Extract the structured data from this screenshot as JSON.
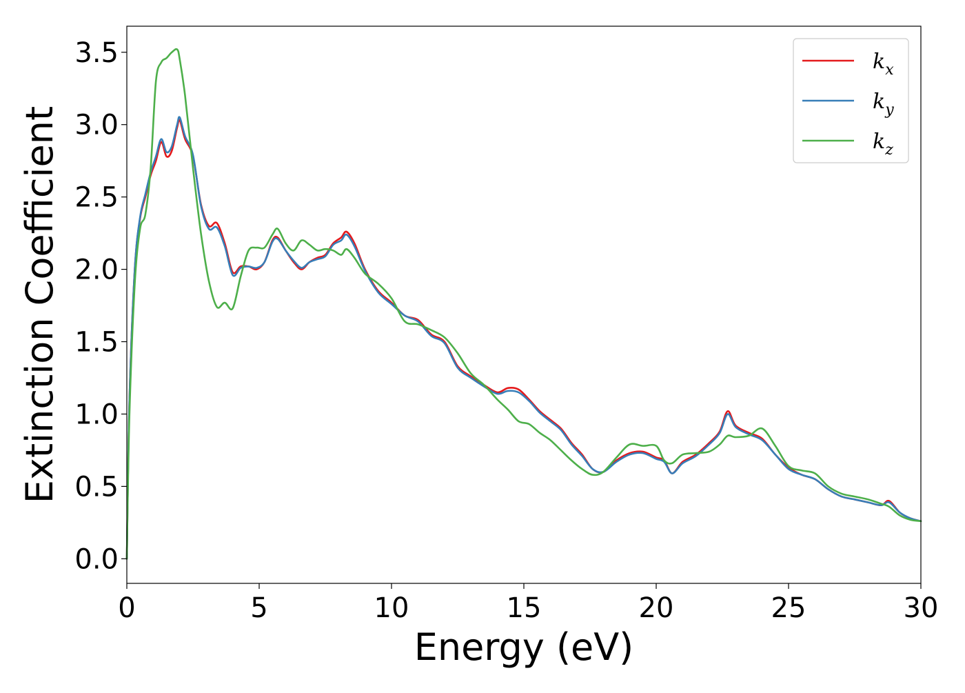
{
  "chart_data": {
    "type": "line",
    "title": "",
    "xlabel": "Energy (eV)",
    "ylabel": "Extinction Coefficient",
    "xlim": [
      0,
      30
    ],
    "ylim": [
      -0.17,
      3.68
    ],
    "xticks": [
      0,
      5,
      10,
      15,
      20,
      25,
      30
    ],
    "xtick_labels": [
      "0",
      "5",
      "10",
      "15",
      "20",
      "25",
      "30"
    ],
    "yticks": [
      0.0,
      0.5,
      1.0,
      1.5,
      2.0,
      2.5,
      3.0,
      3.5
    ],
    "ytick_labels": [
      "0.0",
      "0.5",
      "1.0",
      "1.5",
      "2.0",
      "2.5",
      "3.0",
      "3.5"
    ],
    "grid": false,
    "legend_position": "top-right",
    "series": [
      {
        "name": "k",
        "subscript": "x",
        "color": "#e41a1c",
        "x": [
          0,
          0.1,
          0.3,
          0.5,
          0.7,
          0.9,
          1.1,
          1.3,
          1.5,
          1.7,
          1.9,
          2.0,
          2.2,
          2.5,
          2.8,
          3.1,
          3.4,
          3.7,
          4.0,
          4.3,
          4.6,
          4.9,
          5.2,
          5.5,
          5.7,
          6.0,
          6.3,
          6.6,
          6.9,
          7.2,
          7.5,
          7.8,
          8.1,
          8.3,
          8.6,
          9.0,
          9.5,
          10.0,
          10.5,
          11.0,
          11.5,
          12.0,
          12.5,
          13.0,
          13.5,
          14.0,
          14.4,
          14.8,
          15.2,
          15.6,
          16.0,
          16.4,
          16.8,
          17.2,
          17.6,
          18.0,
          18.5,
          19.0,
          19.5,
          20.0,
          20.3,
          20.6,
          21.0,
          21.5,
          22.0,
          22.4,
          22.7,
          23.0,
          23.5,
          24.0,
          24.5,
          25.0,
          25.5,
          26.0,
          26.5,
          27.0,
          27.5,
          28.0,
          28.5,
          28.8,
          29.2,
          29.6,
          30.0
        ],
        "y": [
          0.0,
          1.1,
          2.0,
          2.35,
          2.5,
          2.65,
          2.75,
          2.88,
          2.78,
          2.82,
          2.98,
          3.03,
          2.9,
          2.78,
          2.45,
          2.3,
          2.32,
          2.18,
          1.98,
          2.02,
          2.02,
          2.0,
          2.05,
          2.2,
          2.22,
          2.13,
          2.05,
          2.0,
          2.05,
          2.08,
          2.1,
          2.18,
          2.22,
          2.26,
          2.18,
          2.0,
          1.85,
          1.77,
          1.68,
          1.65,
          1.55,
          1.5,
          1.33,
          1.26,
          1.2,
          1.15,
          1.18,
          1.17,
          1.1,
          1.02,
          0.96,
          0.9,
          0.8,
          0.72,
          0.62,
          0.6,
          0.68,
          0.73,
          0.74,
          0.7,
          0.68,
          0.59,
          0.67,
          0.72,
          0.8,
          0.88,
          1.02,
          0.92,
          0.87,
          0.83,
          0.72,
          0.63,
          0.58,
          0.55,
          0.48,
          0.43,
          0.41,
          0.39,
          0.37,
          0.4,
          0.32,
          0.28,
          0.26
        ]
      },
      {
        "name": "k",
        "subscript": "y",
        "color": "#377eb8",
        "x": [
          0,
          0.1,
          0.3,
          0.5,
          0.7,
          0.9,
          1.1,
          1.3,
          1.5,
          1.7,
          1.9,
          2.0,
          2.2,
          2.5,
          2.8,
          3.1,
          3.4,
          3.7,
          4.0,
          4.3,
          4.6,
          4.9,
          5.2,
          5.5,
          5.7,
          6.0,
          6.3,
          6.6,
          6.9,
          7.2,
          7.5,
          7.8,
          8.1,
          8.3,
          8.6,
          9.0,
          9.5,
          10.0,
          10.5,
          11.0,
          11.5,
          12.0,
          12.5,
          13.0,
          13.5,
          14.0,
          14.4,
          14.8,
          15.2,
          15.6,
          16.0,
          16.4,
          16.8,
          17.2,
          17.6,
          18.0,
          18.5,
          19.0,
          19.5,
          20.0,
          20.3,
          20.6,
          21.0,
          21.5,
          22.0,
          22.4,
          22.7,
          23.0,
          23.5,
          24.0,
          24.5,
          25.0,
          25.5,
          26.0,
          26.5,
          27.0,
          27.5,
          28.0,
          28.5,
          28.8,
          29.2,
          29.6,
          30.0
        ],
        "y": [
          0.0,
          1.1,
          2.0,
          2.36,
          2.52,
          2.67,
          2.78,
          2.9,
          2.81,
          2.85,
          3.0,
          3.05,
          2.92,
          2.79,
          2.44,
          2.28,
          2.29,
          2.16,
          1.96,
          2.01,
          2.02,
          2.01,
          2.05,
          2.19,
          2.21,
          2.13,
          2.06,
          2.01,
          2.05,
          2.07,
          2.09,
          2.17,
          2.2,
          2.24,
          2.16,
          1.99,
          1.84,
          1.76,
          1.68,
          1.64,
          1.54,
          1.49,
          1.32,
          1.25,
          1.19,
          1.14,
          1.16,
          1.15,
          1.09,
          1.01,
          0.95,
          0.89,
          0.79,
          0.71,
          0.62,
          0.6,
          0.67,
          0.72,
          0.73,
          0.69,
          0.67,
          0.59,
          0.66,
          0.71,
          0.79,
          0.87,
          1.0,
          0.91,
          0.86,
          0.82,
          0.72,
          0.62,
          0.58,
          0.55,
          0.48,
          0.43,
          0.41,
          0.39,
          0.37,
          0.39,
          0.32,
          0.28,
          0.26
        ]
      },
      {
        "name": "k",
        "subscript": "z",
        "color": "#4daf4a",
        "x": [
          0,
          0.1,
          0.3,
          0.5,
          0.7,
          0.9,
          1.1,
          1.3,
          1.5,
          1.7,
          1.9,
          2.0,
          2.2,
          2.5,
          2.8,
          3.1,
          3.4,
          3.7,
          4.0,
          4.3,
          4.6,
          4.9,
          5.2,
          5.5,
          5.7,
          6.0,
          6.3,
          6.6,
          6.9,
          7.2,
          7.5,
          7.8,
          8.1,
          8.3,
          8.6,
          9.0,
          9.5,
          10.0,
          10.5,
          11.0,
          11.5,
          12.0,
          12.5,
          13.0,
          13.5,
          14.0,
          14.4,
          14.8,
          15.2,
          15.6,
          16.0,
          16.4,
          16.8,
          17.2,
          17.6,
          18.0,
          18.5,
          19.0,
          19.5,
          20.0,
          20.3,
          20.6,
          21.0,
          21.5,
          22.0,
          22.4,
          22.7,
          23.0,
          23.5,
          24.0,
          24.5,
          25.0,
          25.5,
          26.0,
          26.5,
          27.0,
          27.5,
          28.0,
          28.5,
          28.8,
          29.2,
          29.6,
          30.0
        ],
        "y": [
          0.0,
          1.0,
          1.9,
          2.28,
          2.38,
          2.7,
          3.3,
          3.43,
          3.46,
          3.5,
          3.52,
          3.45,
          3.2,
          2.7,
          2.25,
          1.92,
          1.74,
          1.77,
          1.73,
          1.95,
          2.13,
          2.15,
          2.15,
          2.24,
          2.28,
          2.18,
          2.13,
          2.2,
          2.17,
          2.13,
          2.14,
          2.13,
          2.1,
          2.14,
          2.08,
          1.97,
          1.9,
          1.8,
          1.64,
          1.62,
          1.58,
          1.53,
          1.42,
          1.28,
          1.2,
          1.1,
          1.03,
          0.95,
          0.93,
          0.87,
          0.82,
          0.75,
          0.68,
          0.62,
          0.58,
          0.6,
          0.7,
          0.79,
          0.78,
          0.78,
          0.68,
          0.66,
          0.72,
          0.73,
          0.74,
          0.79,
          0.85,
          0.84,
          0.85,
          0.9,
          0.78,
          0.64,
          0.61,
          0.59,
          0.5,
          0.45,
          0.43,
          0.41,
          0.38,
          0.36,
          0.3,
          0.27,
          0.26
        ]
      }
    ]
  }
}
